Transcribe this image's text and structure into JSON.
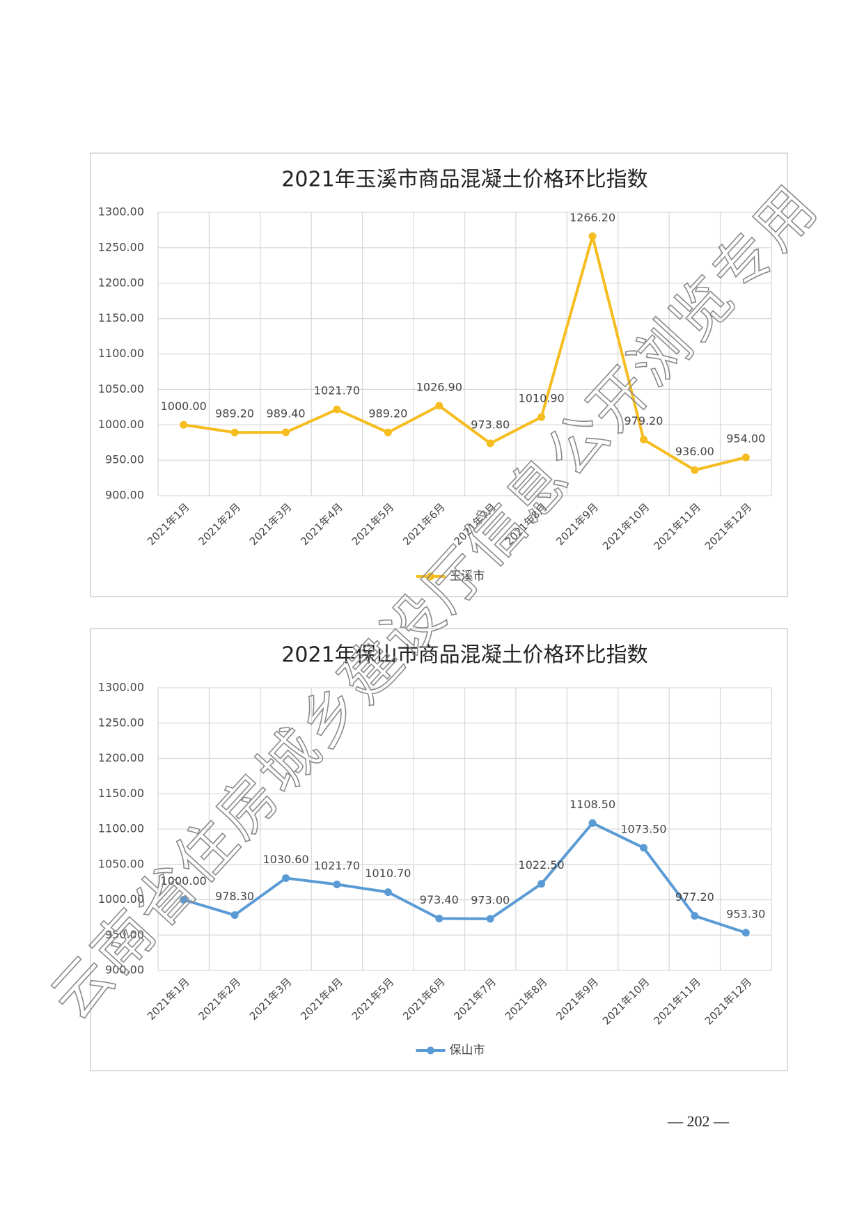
{
  "chart_data": [
    {
      "type": "line",
      "title": "2021年玉溪市商品混凝土价格环比指数",
      "categories": [
        "2021年1月",
        "2021年2月",
        "2021年3月",
        "2021年4月",
        "2021年5月",
        "2021年6月",
        "2021年7月",
        "2021年8月",
        "2021年9月",
        "2021年10月",
        "2021年11月",
        "2021年12月"
      ],
      "series": [
        {
          "name": "玉溪市",
          "color": "#f5bd1f",
          "values": [
            1000,
            989.2,
            989.4,
            1021.7,
            989.2,
            1026.9,
            973.8,
            1010.9,
            1266.2,
            979.2,
            936,
            954
          ],
          "value_labels": [
            "1000.00",
            "989.20",
            "989.40",
            "1021.70",
            "989.20",
            "1026.90",
            "973.80",
            "1010.90",
            "1266.20",
            "979.20",
            "936.00",
            "954.00"
          ]
        }
      ],
      "ylim": [
        900,
        1300
      ],
      "yticks": [
        {
          "value": 900,
          "label": "900.00"
        },
        {
          "value": 950,
          "label": "950.00"
        },
        {
          "value": 1000,
          "label": "1000.00"
        },
        {
          "value": 1050,
          "label": "1050.00"
        },
        {
          "value": 1100,
          "label": "1100.00"
        },
        {
          "value": 1150,
          "label": "1150.00"
        },
        {
          "value": 1200,
          "label": "1200.00"
        },
        {
          "value": 1250,
          "label": "1250.00"
        },
        {
          "value": 1300,
          "label": "1300.00"
        }
      ],
      "grid": true,
      "legend": "bottom"
    },
    {
      "type": "line",
      "title": "2021年保山市商品混凝土价格环比指数",
      "categories": [
        "2021年1月",
        "2021年2月",
        "2021年3月",
        "2021年4月",
        "2021年5月",
        "2021年6月",
        "2021年7月",
        "2021年8月",
        "2021年9月",
        "2021年10月",
        "2021年11月",
        "2021年12月"
      ],
      "series": [
        {
          "name": "保山市",
          "color": "#5b9bd5",
          "values": [
            1000,
            978.3,
            1030.6,
            1021.7,
            1010.7,
            973.4,
            973,
            1022.5,
            1108.5,
            1073.5,
            977.2,
            953.3
          ],
          "value_labels": [
            "1000.00",
            "978.30",
            "1030.60",
            "1021.70",
            "1010.70",
            "973.40",
            "973.00",
            "1022.50",
            "1108.50",
            "1073.50",
            "977.20",
            "953.30"
          ]
        }
      ],
      "ylim": [
        900,
        1300
      ],
      "yticks": [
        {
          "value": 900,
          "label": "900.00"
        },
        {
          "value": 950,
          "label": "950.00"
        },
        {
          "value": 1000,
          "label": "1000.00"
        },
        {
          "value": 1050,
          "label": "1050.00"
        },
        {
          "value": 1100,
          "label": "1100.00"
        },
        {
          "value": 1150,
          "label": "1150.00"
        },
        {
          "value": 1200,
          "label": "1200.00"
        },
        {
          "value": 1250,
          "label": "1250.00"
        },
        {
          "value": 1300,
          "label": "1300.00"
        }
      ],
      "grid": true,
      "legend": "bottom"
    }
  ],
  "watermark": "云南省住房城乡建设厅信息公开浏览专用",
  "page_number": "— 202 —"
}
